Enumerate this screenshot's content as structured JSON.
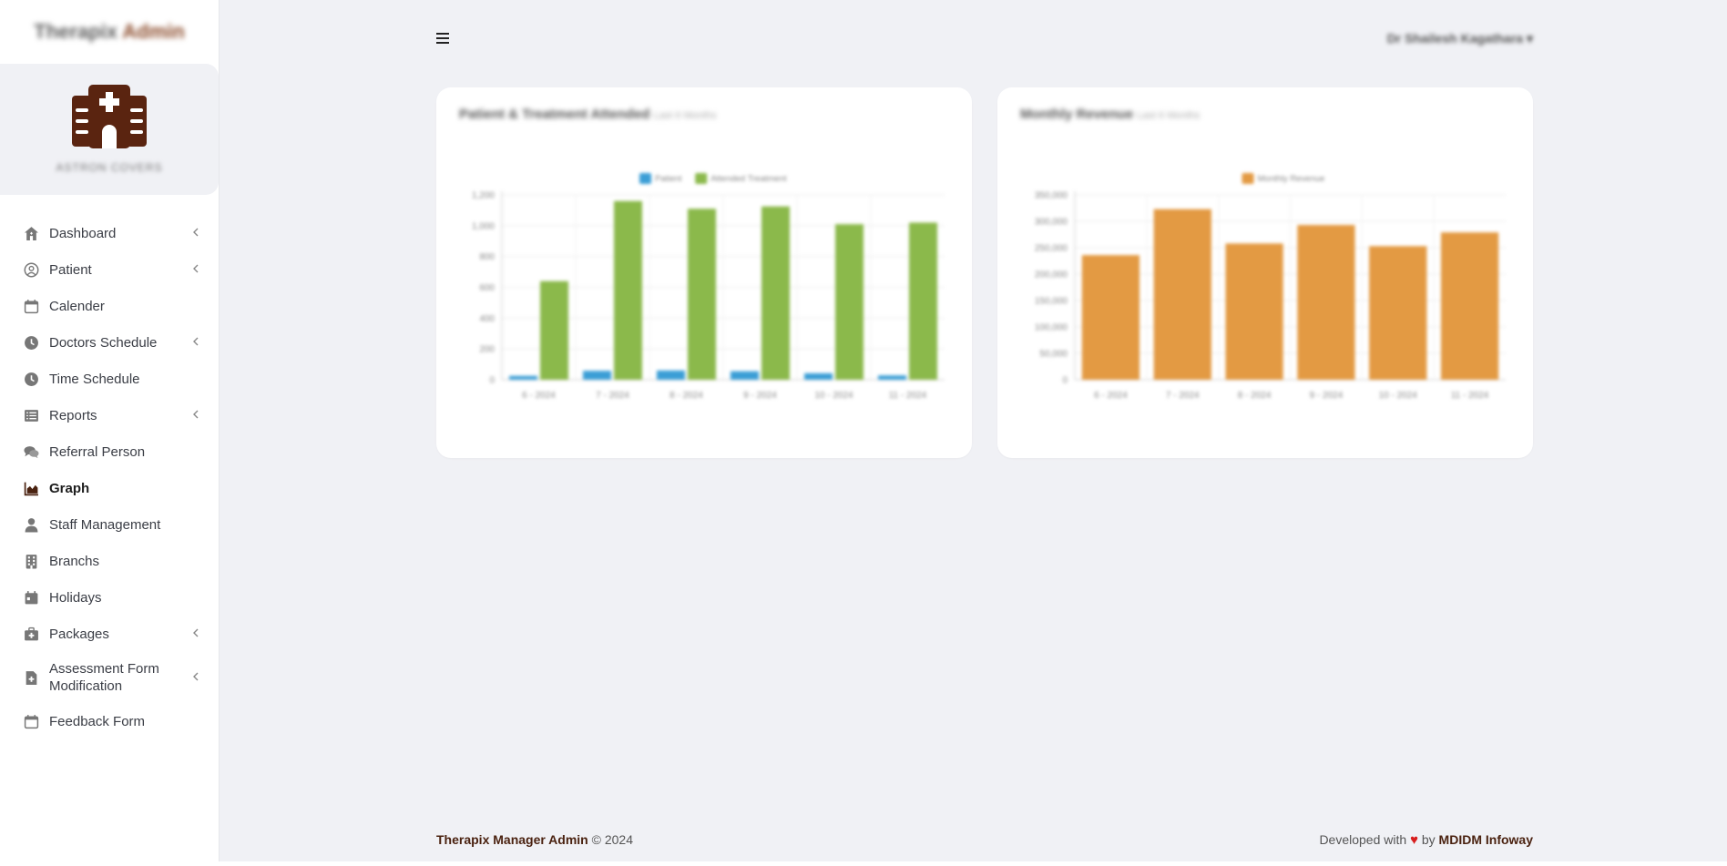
{
  "brand": {
    "title_main": "Therapix",
    "title_accent": "Admin"
  },
  "profile": {
    "name": "ASTRON COVERS"
  },
  "sidebar": {
    "items": [
      {
        "label": "Dashboard",
        "icon": "home-icon",
        "has_submenu": true
      },
      {
        "label": "Patient",
        "icon": "user-circle-icon",
        "has_submenu": true
      },
      {
        "label": "Calender",
        "icon": "calendar-icon",
        "has_submenu": false
      },
      {
        "label": "Doctors Schedule",
        "icon": "clock-icon",
        "has_submenu": true
      },
      {
        "label": "Time Schedule",
        "icon": "clock-icon",
        "has_submenu": false
      },
      {
        "label": "Reports",
        "icon": "list-icon",
        "has_submenu": true
      },
      {
        "label": "Referral Person",
        "icon": "comments-icon",
        "has_submenu": false
      },
      {
        "label": "Graph",
        "icon": "area-chart-icon",
        "has_submenu": false,
        "active": true
      },
      {
        "label": "Staff Management",
        "icon": "person-icon",
        "has_submenu": false
      },
      {
        "label": "Branchs",
        "icon": "building-icon",
        "has_submenu": false
      },
      {
        "label": "Holidays",
        "icon": "calendar-day-icon",
        "has_submenu": false
      },
      {
        "label": "Packages",
        "icon": "medical-kit-icon",
        "has_submenu": true
      },
      {
        "label": "Assessment Form Modification",
        "icon": "file-medical-icon",
        "has_submenu": true
      },
      {
        "label": "Feedback Form",
        "icon": "calendar-icon",
        "has_submenu": false
      }
    ]
  },
  "header": {
    "user_name": "Dr Shailesh Kagathara"
  },
  "colors": {
    "accent": "#4a2210",
    "blue_series": "#3b9ed6",
    "green_series": "#8bb94b",
    "orange_series": "#e39a43"
  },
  "chart_data": [
    {
      "type": "bar",
      "title": "Patient & Treatment Attended",
      "subtitle": "Last 6 Months",
      "categories": [
        "6 - 2024",
        "7 - 2024",
        "8 - 2024",
        "9 - 2024",
        "10 - 2024",
        "11 - 2024"
      ],
      "series": [
        {
          "name": "Patient",
          "values": [
            25,
            58,
            60,
            55,
            42,
            28
          ]
        },
        {
          "name": "Attended Treatment",
          "values": [
            640,
            1160,
            1110,
            1125,
            1010,
            1020
          ]
        }
      ],
      "yticks": [
        "0",
        "200",
        "400",
        "600",
        "800",
        "1,000",
        "1,200"
      ],
      "ylim": [
        0,
        1200
      ],
      "legend": "top",
      "grid": true
    },
    {
      "type": "bar",
      "title": "Monthly Revenue",
      "subtitle": "Last 6 Months",
      "categories": [
        "6 - 2024",
        "7 - 2024",
        "8 - 2024",
        "9 - 2024",
        "10 - 2024",
        "11 - 2024"
      ],
      "series": [
        {
          "name": "Monthly Revenue",
          "values": [
            236000,
            323000,
            258000,
            293000,
            253000,
            279000
          ]
        }
      ],
      "yticks": [
        "0",
        "50,000",
        "100,000",
        "150,000",
        "200,000",
        "250,000",
        "300,000",
        "350,000"
      ],
      "ylim": [
        0,
        350000
      ],
      "legend": "top",
      "grid": true
    }
  ],
  "footer": {
    "app_name": "Therapix Manager Admin",
    "copyright": "© 2024",
    "developed_with": "Developed with",
    "by": "by",
    "company": "MDIDM Infoway"
  }
}
